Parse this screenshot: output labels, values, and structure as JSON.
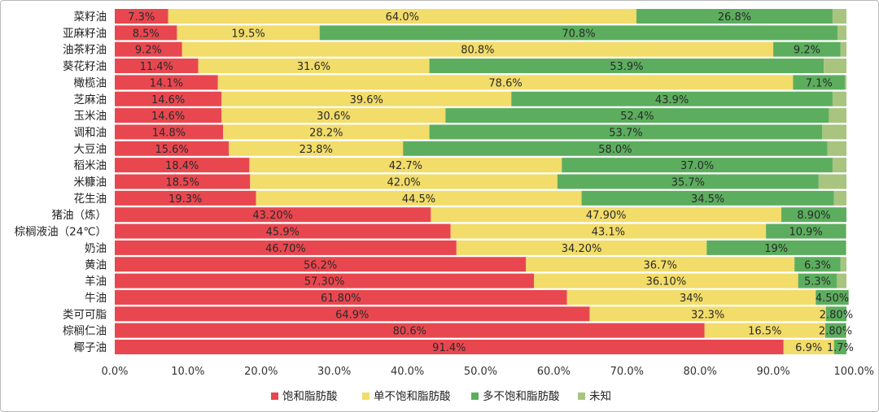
{
  "chart_data": {
    "type": "bar",
    "orientation": "horizontal",
    "stacked": true,
    "categories": [
      "菜籽油",
      "亚麻籽油",
      "油茶籽油",
      "葵花籽油",
      "橄榄油",
      "芝麻油",
      "玉米油",
      "调和油",
      "大豆油",
      "稻米油",
      "米糠油",
      "花生油",
      "猪油（炼）",
      "棕榈液油（24℃）",
      "奶油",
      "黄油",
      "羊油",
      "牛油",
      "类可可脂",
      "棕榈仁油",
      "椰子油"
    ],
    "series": [
      {
        "name": "饱和脂肪酸",
        "color": "#e8474f",
        "values": [
          7.3,
          8.5,
          9.2,
          11.4,
          14.1,
          14.6,
          14.6,
          14.8,
          15.6,
          18.4,
          18.5,
          19.3,
          43.2,
          45.9,
          46.7,
          56.2,
          57.3,
          61.8,
          64.9,
          80.6,
          91.4
        ],
        "labels": [
          "7.3%",
          "8.5%",
          "9.2%",
          "11.4%",
          "14.1%",
          "14.6%",
          "14.6%",
          "14.8%",
          "15.6%",
          "18.4%",
          "18.5%",
          "19.3%",
          "43.20%",
          "45.9%",
          "46.70%",
          "56.2%",
          "57.30%",
          "61.80%",
          "64.9%",
          "80.6%",
          "91.4%"
        ]
      },
      {
        "name": "单不饱和脂肪酸",
        "color": "#f2dc6a",
        "values": [
          64.0,
          19.5,
          80.8,
          31.6,
          78.6,
          39.6,
          30.6,
          28.2,
          23.8,
          42.7,
          42.0,
          44.5,
          47.9,
          43.1,
          34.2,
          36.7,
          36.1,
          34.0,
          32.3,
          16.5,
          6.9
        ],
        "labels": [
          "64.0%",
          "19.5%",
          "80.8%",
          "31.6%",
          "78.6%",
          "39.6%",
          "30.6%",
          "28.2%",
          "23.8%",
          "42.7%",
          "42.0%",
          "44.5%",
          "47.90%",
          "43.1%",
          "34.20%",
          "36.7%",
          "36.10%",
          "34%",
          "32.3%",
          "16.5%",
          "6.9%"
        ]
      },
      {
        "name": "多不饱和脂肪酸",
        "color": "#5cae5e",
        "values": [
          26.8,
          70.8,
          9.2,
          53.9,
          7.1,
          43.9,
          52.4,
          53.7,
          58.0,
          37.0,
          35.7,
          34.5,
          8.9,
          10.9,
          19.0,
          6.3,
          5.3,
          4.5,
          2.8,
          2.8,
          1.7
        ],
        "labels": [
          "26.8%",
          "70.8%",
          "9.2%",
          "53.9%",
          "7.1%",
          "43.9%",
          "52.4%",
          "53.7%",
          "58.0%",
          "37.0%",
          "35.7%",
          "34.5%",
          "8.90%",
          "10.9%",
          "19%",
          "6.3%",
          "5.3%",
          "4.50%",
          "2.80%",
          "2.80%",
          "1.7%"
        ]
      },
      {
        "name": "未知",
        "color": "#a8c47f",
        "values": [
          1.9,
          1.2,
          0.8,
          3.1,
          0.2,
          1.9,
          2.4,
          3.3,
          2.6,
          1.9,
          3.8,
          1.7,
          0.0,
          0.1,
          0.1,
          0.8,
          1.3,
          0.0,
          0.0,
          0.1,
          0.0
        ],
        "labels": [
          "",
          "",
          "",
          "",
          "",
          "",
          "",
          "",
          "",
          "",
          "",
          "",
          "",
          "",
          "",
          "",
          "",
          "",
          "",
          "",
          ""
        ]
      }
    ],
    "x_ticks": [
      "0.0%",
      "10.0%",
      "20.0%",
      "30.0%",
      "40.0%",
      "50.0%",
      "60.0%",
      "70.0%",
      "80.0%",
      "90.0%",
      "100.0%"
    ],
    "xlim": [
      0,
      100
    ],
    "title": "",
    "xlabel": "",
    "ylabel": "",
    "grid": false,
    "legend_position": "bottom"
  }
}
